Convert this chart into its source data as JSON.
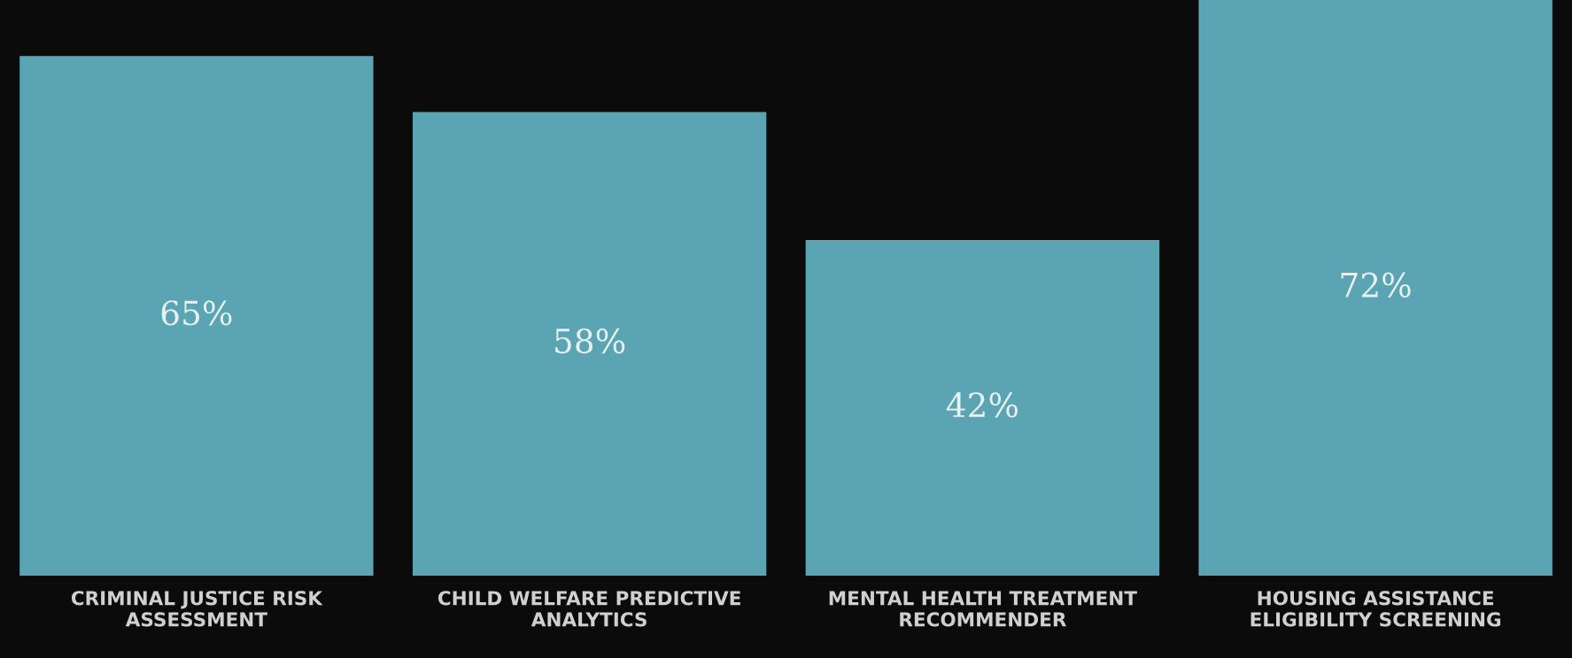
{
  "chart_data": {
    "type": "bar",
    "categories": [
      "CRIMINAL JUSTICE RISK\nASSESSMENT",
      "CHILD WELFARE PREDICTIVE\nANALYTICS",
      "MENTAL HEALTH TREATMENT\nRECOMMENDER",
      "HOUSING ASSISTANCE\nELIGIBILITY SCREENING"
    ],
    "values": [
      65,
      58,
      42,
      72
    ],
    "value_labels": [
      "65%",
      "58%",
      "42%",
      "72%"
    ],
    "color": "#5ba4b4",
    "tick_labels": "x",
    "grid": false,
    "legend": false
  }
}
